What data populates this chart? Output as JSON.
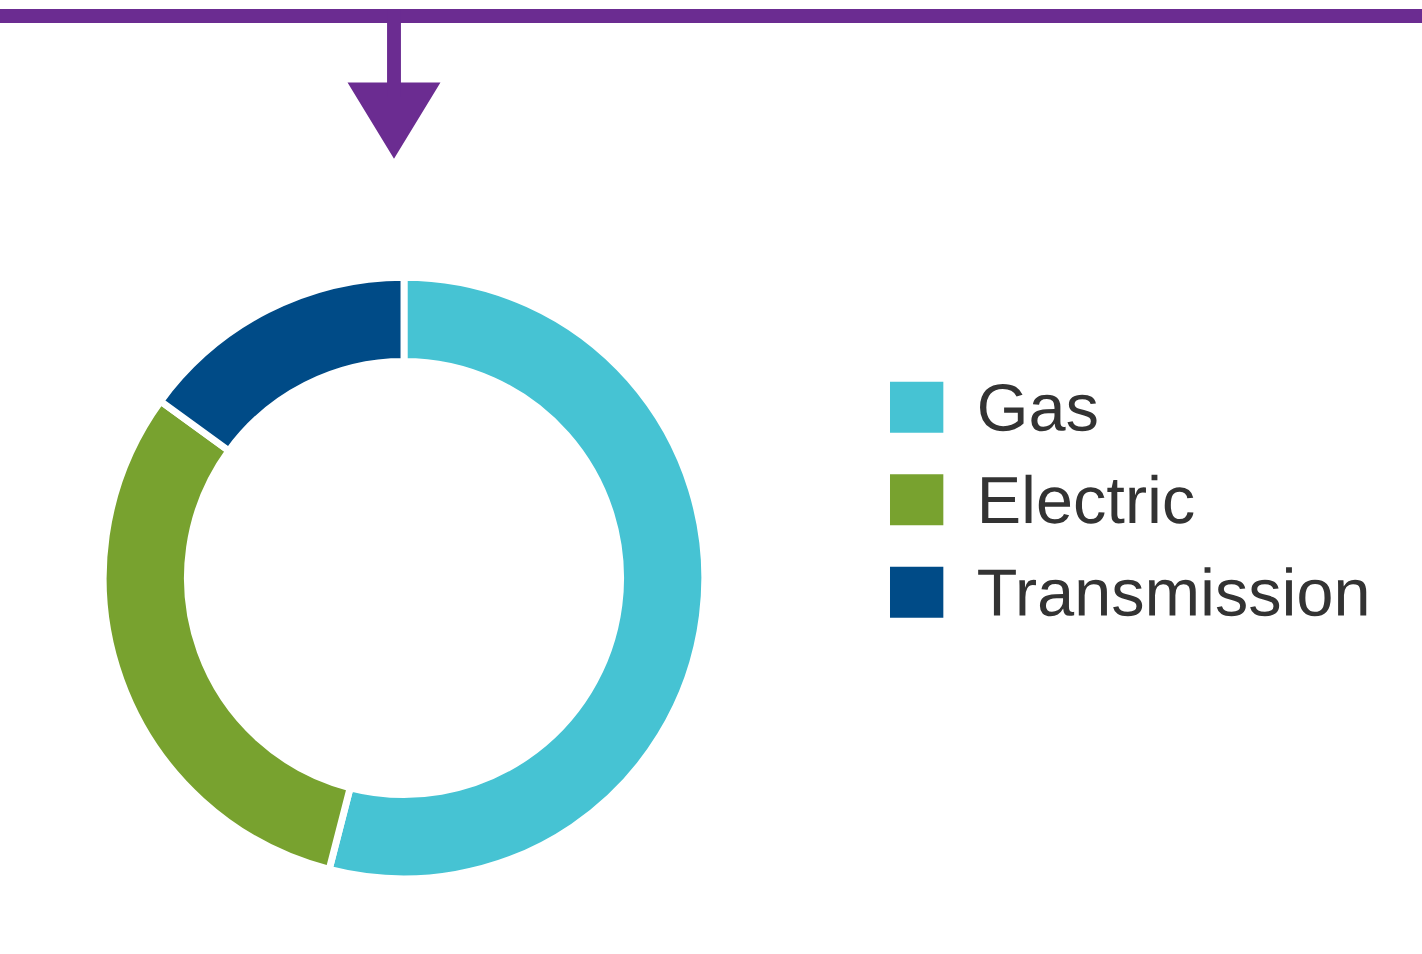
{
  "chart_data": {
    "type": "donut",
    "categories": [
      "Gas",
      "Electric",
      "Transmission"
    ],
    "values": [
      54,
      31,
      15
    ],
    "colors": [
      "#46c3d3",
      "#78a22f",
      "#004b87"
    ],
    "legend": "right"
  }
}
